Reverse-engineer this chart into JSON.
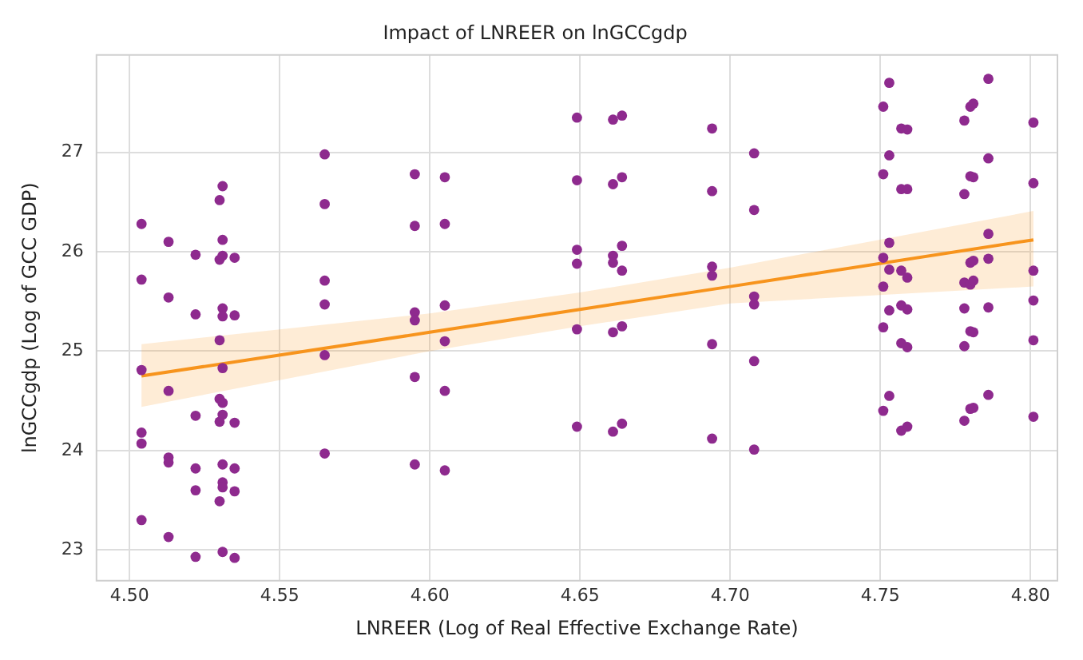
{
  "chart_data": {
    "type": "scatter",
    "title": "Impact of LNREER on lnGCCgdp",
    "xlabel": "LNREER (Log of Real Effective Exchange Rate)",
    "ylabel": "lnGCCgdp (Log of GCC GDP)",
    "xlim": [
      4.489,
      4.809
    ],
    "ylim": [
      22.69,
      27.98
    ],
    "xticks": [
      {
        "value": 4.5,
        "label": "4.50"
      },
      {
        "value": 4.55,
        "label": "4.55"
      },
      {
        "value": 4.6,
        "label": "4.60"
      },
      {
        "value": 4.65,
        "label": "4.65"
      },
      {
        "value": 4.7,
        "label": "4.70"
      },
      {
        "value": 4.75,
        "label": "4.75"
      },
      {
        "value": 4.8,
        "label": "4.80"
      }
    ],
    "yticks": [
      23,
      24,
      25,
      26,
      27
    ],
    "grid": true,
    "legend": false,
    "marker": "circle",
    "series": [
      {
        "color": "#8e2a8e",
        "x": [
          4.504,
          4.504,
          4.504,
          4.504,
          4.504,
          4.504,
          4.513,
          4.513,
          4.513,
          4.513,
          4.513,
          4.513,
          4.522,
          4.522,
          4.522,
          4.522,
          4.522,
          4.522,
          4.53,
          4.53,
          4.53,
          4.53,
          4.53,
          4.53,
          4.531,
          4.531,
          4.531,
          4.531,
          4.531,
          4.531,
          4.531,
          4.531,
          4.531,
          4.531,
          4.531,
          4.531,
          4.535,
          4.535,
          4.535,
          4.535,
          4.535,
          4.535,
          4.565,
          4.565,
          4.565,
          4.565,
          4.565,
          4.565,
          4.595,
          4.595,
          4.595,
          4.595,
          4.595,
          4.595,
          4.605,
          4.605,
          4.605,
          4.605,
          4.605,
          4.605,
          4.649,
          4.649,
          4.649,
          4.649,
          4.649,
          4.649,
          4.661,
          4.661,
          4.661,
          4.661,
          4.661,
          4.661,
          4.664,
          4.664,
          4.664,
          4.664,
          4.664,
          4.664,
          4.694,
          4.694,
          4.694,
          4.694,
          4.694,
          4.694,
          4.708,
          4.708,
          4.708,
          4.708,
          4.708,
          4.708,
          4.751,
          4.751,
          4.751,
          4.751,
          4.751,
          4.751,
          4.753,
          4.753,
          4.753,
          4.753,
          4.753,
          4.753,
          4.757,
          4.757,
          4.757,
          4.757,
          4.757,
          4.757,
          4.759,
          4.759,
          4.759,
          4.759,
          4.759,
          4.759,
          4.778,
          4.778,
          4.778,
          4.778,
          4.778,
          4.778,
          4.78,
          4.78,
          4.78,
          4.78,
          4.78,
          4.78,
          4.781,
          4.781,
          4.781,
          4.781,
          4.781,
          4.781,
          4.786,
          4.786,
          4.786,
          4.786,
          4.786,
          4.786,
          4.801,
          4.801,
          4.801,
          4.801,
          4.801,
          4.801
        ],
        "values": [
          26.28,
          25.72,
          24.81,
          24.18,
          24.07,
          23.3,
          26.1,
          25.54,
          24.6,
          23.93,
          23.88,
          23.13,
          25.97,
          25.37,
          24.35,
          23.82,
          23.6,
          22.93,
          26.52,
          25.92,
          25.11,
          24.52,
          24.29,
          23.49,
          26.66,
          26.12,
          25.96,
          25.43,
          25.35,
          24.83,
          24.48,
          24.36,
          23.86,
          23.68,
          23.63,
          22.98,
          25.94,
          25.36,
          24.28,
          23.82,
          23.59,
          22.92,
          26.98,
          26.48,
          25.71,
          25.47,
          24.96,
          23.97,
          26.78,
          26.26,
          25.39,
          25.31,
          24.74,
          23.86,
          26.75,
          26.28,
          25.46,
          25.1,
          24.6,
          23.8,
          27.35,
          26.72,
          26.02,
          25.88,
          25.22,
          24.24,
          27.33,
          26.68,
          25.96,
          25.89,
          25.19,
          24.19,
          27.37,
          26.75,
          26.06,
          25.81,
          25.25,
          24.27,
          27.24,
          26.61,
          25.85,
          25.76,
          25.07,
          24.12,
          26.99,
          26.42,
          25.55,
          25.47,
          24.9,
          24.01,
          27.46,
          26.78,
          25.94,
          25.65,
          25.24,
          24.4,
          27.7,
          26.97,
          26.09,
          25.82,
          25.41,
          24.55,
          27.24,
          26.63,
          25.81,
          25.46,
          25.08,
          24.2,
          27.23,
          26.63,
          25.74,
          25.42,
          25.04,
          24.24,
          27.32,
          26.58,
          25.69,
          25.43,
          25.05,
          24.3,
          27.46,
          26.76,
          25.89,
          25.67,
          25.2,
          24.42,
          27.49,
          26.75,
          25.91,
          25.71,
          25.19,
          24.43,
          27.74,
          26.94,
          26.18,
          25.93,
          25.44,
          24.56,
          27.3,
          26.69,
          25.81,
          25.51,
          25.11,
          24.34
        ]
      },
      {
        "type": "line",
        "color": "#f7941d",
        "marker": "none",
        "x": [
          4.504,
          4.6,
          4.65,
          4.7,
          4.801
        ],
        "values": [
          24.75,
          25.19,
          25.42,
          25.65,
          26.12
        ],
        "lower": [
          24.44,
          25.0,
          25.25,
          25.48,
          25.65
        ],
        "upper": [
          25.07,
          25.38,
          25.59,
          25.84,
          26.41
        ]
      }
    ]
  }
}
